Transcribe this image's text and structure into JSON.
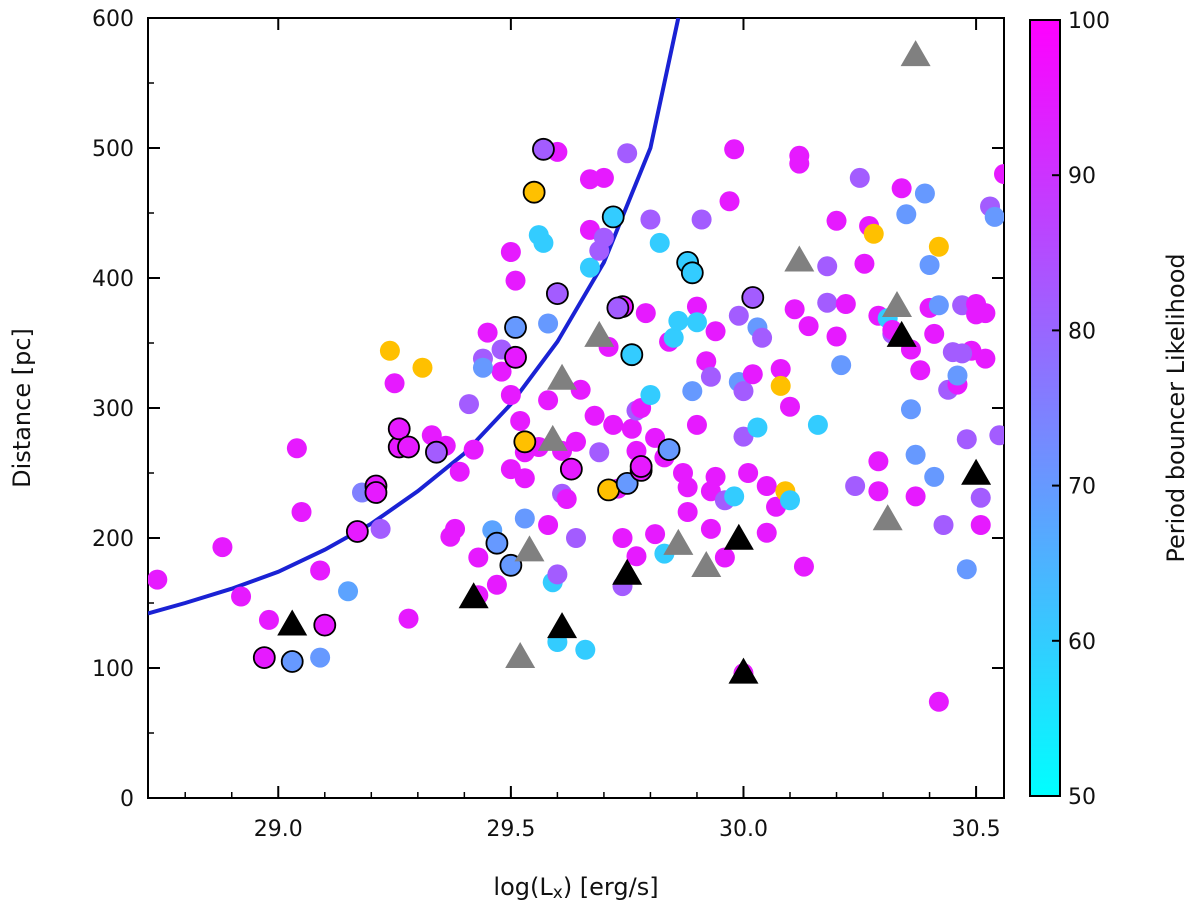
{
  "chart_data": {
    "type": "scatter",
    "xlabel": "log(L",
    "xlabel_sub": "x",
    "xlabel_tail": ") [erg/s]",
    "ylabel": "Distance [pc]",
    "colorbar_label": "Period bouncer Likelihood",
    "xlim": [
      28.72,
      30.56
    ],
    "ylim": [
      0,
      600
    ],
    "xticks": [
      29.0,
      29.5,
      30.0,
      30.5
    ],
    "xtick_labels": [
      "29.0",
      "29.5",
      "30.0",
      "30.5"
    ],
    "yticks": [
      0,
      100,
      200,
      300,
      400,
      500,
      600
    ],
    "ytick_labels": [
      "0",
      "100",
      "200",
      "300",
      "400",
      "500",
      "600"
    ],
    "colorbar_ticks": [
      50,
      60,
      70,
      80,
      90,
      100
    ],
    "colorbar_range": [
      50,
      100
    ],
    "colorbar_colors": [
      "#00ffff",
      "#ff00ff"
    ],
    "no_likelihood_color": "#ffc000",
    "curve_color": "#1a22d4",
    "curve": [
      [
        28.72,
        142
      ],
      [
        28.8,
        150
      ],
      [
        28.9,
        161
      ],
      [
        29.0,
        174
      ],
      [
        29.1,
        191
      ],
      [
        29.2,
        211
      ],
      [
        29.3,
        236
      ],
      [
        29.4,
        265
      ],
      [
        29.5,
        303
      ],
      [
        29.6,
        351
      ],
      [
        29.7,
        412
      ],
      [
        29.8,
        500
      ],
      [
        29.86,
        600
      ]
    ],
    "series": [
      {
        "marker": "circle",
        "points": [
          [
            28.74,
            168,
            95
          ],
          [
            28.88,
            193,
            95
          ],
          [
            28.92,
            155,
            95
          ],
          [
            28.98,
            137,
            95
          ],
          [
            29.05,
            220,
            95
          ],
          [
            29.04,
            269,
            95
          ],
          [
            29.09,
            175,
            95
          ],
          [
            29.15,
            159,
            68
          ],
          [
            29.18,
            235,
            75
          ],
          [
            29.22,
            207,
            82
          ],
          [
            29.25,
            319,
            95
          ],
          [
            29.24,
            344,
            null
          ],
          [
            29.28,
            138,
            95
          ],
          [
            29.31,
            331,
            null
          ],
          [
            29.33,
            279,
            95
          ],
          [
            29.36,
            271,
            95
          ],
          [
            29.38,
            207,
            95
          ],
          [
            29.41,
            303,
            82
          ],
          [
            29.42,
            268,
            95
          ],
          [
            29.43,
            185,
            95
          ],
          [
            29.43,
            156,
            95
          ],
          [
            29.44,
            338,
            82
          ],
          [
            29.45,
            358,
            95
          ],
          [
            29.46,
            206,
            68
          ],
          [
            29.48,
            345,
            82
          ],
          [
            29.48,
            328,
            95
          ],
          [
            29.5,
            253,
            95
          ],
          [
            29.5,
            310,
            95
          ],
          [
            29.5,
            420,
            95
          ],
          [
            29.51,
            398,
            95
          ],
          [
            29.52,
            290,
            95
          ],
          [
            29.53,
            266,
            95
          ],
          [
            29.53,
            246,
            95
          ],
          [
            29.55,
            466,
            60
          ],
          [
            29.56,
            433,
            60
          ],
          [
            29.57,
            427,
            60
          ],
          [
            29.58,
            365,
            70
          ],
          [
            29.58,
            210,
            95
          ],
          [
            29.59,
            166,
            60
          ],
          [
            29.6,
            172,
            82
          ],
          [
            29.6,
            120,
            60
          ],
          [
            29.6,
            497,
            95
          ],
          [
            29.61,
            267,
            95
          ],
          [
            29.61,
            234,
            82
          ],
          [
            29.62,
            230,
            95
          ],
          [
            29.64,
            200,
            82
          ],
          [
            29.64,
            274,
            95
          ],
          [
            29.65,
            314,
            95
          ],
          [
            29.66,
            114,
            60
          ],
          [
            29.67,
            437,
            95
          ],
          [
            29.67,
            476,
            95
          ],
          [
            29.67,
            408,
            60
          ],
          [
            29.68,
            294,
            95
          ],
          [
            29.69,
            266,
            82
          ],
          [
            29.69,
            421,
            82
          ],
          [
            29.7,
            431,
            82
          ],
          [
            29.7,
            477,
            95
          ],
          [
            29.71,
            347,
            95
          ],
          [
            29.72,
            287,
            95
          ],
          [
            29.73,
            238,
            95
          ],
          [
            29.74,
            200,
            95
          ],
          [
            29.74,
            163,
            82
          ],
          [
            29.75,
            496,
            82
          ],
          [
            29.76,
            284,
            95
          ],
          [
            29.77,
            186,
            95
          ],
          [
            29.77,
            298,
            82
          ],
          [
            29.78,
            300,
            95
          ],
          [
            29.79,
            373,
            95
          ],
          [
            29.8,
            445,
            82
          ],
          [
            29.8,
            310,
            60
          ],
          [
            29.81,
            277,
            95
          ],
          [
            29.81,
            203,
            95
          ],
          [
            29.82,
            427,
            60
          ],
          [
            29.83,
            188,
            60
          ],
          [
            29.83,
            262,
            95
          ],
          [
            29.84,
            351,
            95
          ],
          [
            29.85,
            354,
            60
          ],
          [
            29.86,
            367,
            60
          ],
          [
            29.87,
            250,
            95
          ],
          [
            29.88,
            239,
            95
          ],
          [
            29.88,
            220,
            95
          ],
          [
            29.89,
            313,
            70
          ],
          [
            29.9,
            378,
            95
          ],
          [
            29.9,
            287,
            95
          ],
          [
            29.91,
            445,
            82
          ],
          [
            29.92,
            336,
            95
          ],
          [
            29.93,
            207,
            95
          ],
          [
            29.93,
            236,
            95
          ],
          [
            29.94,
            247,
            95
          ],
          [
            29.94,
            359,
            95
          ],
          [
            29.96,
            229,
            82
          ],
          [
            29.96,
            185,
            95
          ],
          [
            29.97,
            459,
            95
          ],
          [
            29.98,
            499,
            95
          ],
          [
            29.99,
            320,
            70
          ],
          [
            29.99,
            371,
            82
          ],
          [
            30.0,
            313,
            82
          ],
          [
            30.0,
            278,
            82
          ],
          [
            30.01,
            250,
            95
          ],
          [
            30.02,
            326,
            95
          ],
          [
            30.03,
            285,
            60
          ],
          [
            30.03,
            362,
            70
          ],
          [
            30.04,
            354,
            82
          ],
          [
            30.05,
            204,
            95
          ],
          [
            30.05,
            240,
            95
          ],
          [
            30.07,
            224,
            95
          ],
          [
            30.08,
            330,
            95
          ],
          [
            30.08,
            317,
            null
          ],
          [
            30.09,
            236,
            null
          ],
          [
            30.1,
            301,
            95
          ],
          [
            30.1,
            229,
            60
          ],
          [
            30.11,
            376,
            95
          ],
          [
            30.12,
            488,
            95
          ],
          [
            30.12,
            494,
            95
          ],
          [
            30.13,
            178,
            95
          ],
          [
            30.14,
            363,
            95
          ],
          [
            30.16,
            287,
            60
          ],
          [
            30.18,
            381,
            82
          ],
          [
            30.18,
            409,
            82
          ],
          [
            30.2,
            444,
            95
          ],
          [
            30.2,
            355,
            95
          ],
          [
            30.21,
            333,
            70
          ],
          [
            30.22,
            380,
            95
          ],
          [
            30.24,
            240,
            82
          ],
          [
            30.25,
            477,
            82
          ],
          [
            30.26,
            411,
            95
          ],
          [
            30.27,
            440,
            95
          ],
          [
            30.28,
            434,
            null
          ],
          [
            30.29,
            259,
            95
          ],
          [
            30.29,
            236,
            95
          ],
          [
            30.29,
            371,
            95
          ],
          [
            30.31,
            369,
            60
          ],
          [
            30.32,
            357,
            82
          ],
          [
            30.32,
            360,
            95
          ],
          [
            30.34,
            469,
            95
          ],
          [
            30.35,
            449,
            70
          ],
          [
            30.36,
            299,
            70
          ],
          [
            30.36,
            345,
            95
          ],
          [
            30.37,
            264,
            70
          ],
          [
            30.38,
            329,
            95
          ],
          [
            30.39,
            465,
            70
          ],
          [
            30.4,
            377,
            95
          ],
          [
            30.4,
            410,
            70
          ],
          [
            30.41,
            247,
            70
          ],
          [
            30.41,
            357,
            95
          ],
          [
            30.42,
            379,
            70
          ],
          [
            30.42,
            424,
            null
          ],
          [
            30.43,
            210,
            82
          ],
          [
            30.44,
            314,
            82
          ],
          [
            30.45,
            343,
            82
          ],
          [
            30.46,
            318,
            95
          ],
          [
            30.47,
            379,
            82
          ],
          [
            30.49,
            344,
            95
          ],
          [
            30.5,
            380,
            95
          ],
          [
            30.5,
            372,
            95
          ],
          [
            30.51,
            231,
            82
          ],
          [
            30.51,
            210,
            95
          ],
          [
            30.52,
            338,
            95
          ],
          [
            30.53,
            455,
            82
          ],
          [
            30.54,
            447,
            70
          ],
          [
            30.55,
            279,
            82
          ],
          [
            30.56,
            480,
            95
          ],
          [
            30.42,
            74,
            95
          ],
          [
            30.37,
            232,
            95
          ],
          [
            30.48,
            276,
            82
          ],
          [
            30.47,
            342,
            82
          ],
          [
            30.52,
            373,
            95
          ],
          [
            29.98,
            232,
            60
          ],
          [
            29.93,
            324,
            82
          ],
          [
            29.9,
            366,
            60
          ],
          [
            29.77,
            267,
            95
          ],
          [
            29.56,
            270,
            95
          ],
          [
            29.58,
            306,
            95
          ],
          [
            30.0,
            96,
            95
          ],
          [
            30.48,
            176,
            70
          ],
          [
            30.46,
            325,
            70
          ],
          [
            29.09,
            108,
            70
          ],
          [
            29.37,
            201,
            95
          ],
          [
            29.47,
            164,
            95
          ],
          [
            29.53,
            215,
            70
          ],
          [
            29.44,
            331,
            70
          ],
          [
            29.39,
            251,
            95
          ]
        ]
      },
      {
        "marker": "circle-outlined",
        "points": [
          [
            28.97,
            108,
            95
          ],
          [
            29.03,
            105,
            70
          ],
          [
            29.1,
            133,
            95
          ],
          [
            29.17,
            205,
            95
          ],
          [
            29.21,
            240,
            95
          ],
          [
            29.21,
            235,
            95
          ],
          [
            29.26,
            270,
            95
          ],
          [
            29.26,
            284,
            95
          ],
          [
            29.28,
            270,
            95
          ],
          [
            29.34,
            266,
            82
          ],
          [
            29.47,
            196,
            70
          ],
          [
            29.5,
            179,
            70
          ],
          [
            29.51,
            339,
            95
          ],
          [
            29.51,
            362,
            70
          ],
          [
            29.53,
            274,
            null
          ],
          [
            29.55,
            466,
            null
          ],
          [
            29.57,
            499,
            82
          ],
          [
            29.6,
            388,
            82
          ],
          [
            29.63,
            253,
            95
          ],
          [
            29.71,
            237,
            null
          ],
          [
            29.72,
            447,
            60
          ],
          [
            29.74,
            378,
            95
          ],
          [
            29.73,
            377,
            82
          ],
          [
            29.75,
            242,
            70
          ],
          [
            29.76,
            341,
            60
          ],
          [
            29.78,
            252,
            95
          ],
          [
            29.78,
            255,
            95
          ],
          [
            29.84,
            268,
            70
          ],
          [
            29.88,
            412,
            60
          ],
          [
            29.89,
            404,
            60
          ],
          [
            30.02,
            385,
            82
          ]
        ]
      },
      {
        "marker": "triangle-grey",
        "points": [
          [
            29.52,
            108
          ],
          [
            29.54,
            190
          ],
          [
            29.59,
            275
          ],
          [
            29.61,
            322
          ],
          [
            29.69,
            355
          ],
          [
            29.86,
            195
          ],
          [
            29.92,
            178
          ],
          [
            30.12,
            413
          ],
          [
            30.31,
            214
          ],
          [
            30.33,
            378
          ],
          [
            30.37,
            571
          ]
        ]
      },
      {
        "marker": "triangle-black",
        "points": [
          [
            29.03,
            133
          ],
          [
            29.42,
            154
          ],
          [
            29.61,
            131
          ],
          [
            29.75,
            172
          ],
          [
            29.99,
            199
          ],
          [
            30.0,
            96
          ],
          [
            30.34,
            355
          ],
          [
            30.5,
            249
          ]
        ]
      }
    ]
  }
}
